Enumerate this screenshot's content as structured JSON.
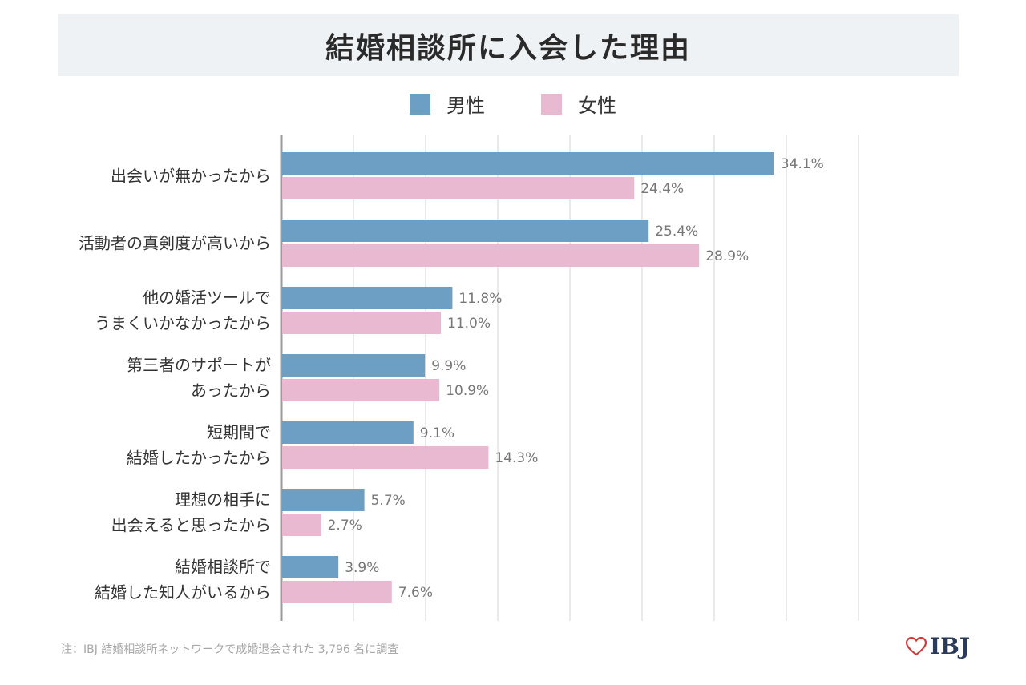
{
  "title": "結婚相談所に入会した理由",
  "legend": {
    "male": {
      "label": "男性",
      "color": "#6c9fc3"
    },
    "female": {
      "label": "女性",
      "color": "#e9b9d1"
    }
  },
  "chart_data": {
    "type": "bar",
    "orientation": "horizontal",
    "title": "結婚相談所に入会した理由",
    "categories": [
      [
        "出会いが無かったから"
      ],
      [
        "活動者の真剣度が高いから"
      ],
      [
        "他の婚活ツールで",
        "うまくいかなかったから"
      ],
      [
        "第三者のサポートが",
        "あったから"
      ],
      [
        "短期間で",
        "結婚したかったから"
      ],
      [
        "理想の相手に",
        "出会えると思ったから"
      ],
      [
        "結婚相談所で",
        "結婚した知人がいるから"
      ]
    ],
    "series": [
      {
        "name": "男性",
        "color": "#6c9fc3",
        "values": [
          34.1,
          25.4,
          11.8,
          9.9,
          9.1,
          5.7,
          3.9
        ]
      },
      {
        "name": "女性",
        "color": "#e9b9d1",
        "values": [
          24.4,
          28.9,
          11.0,
          10.9,
          14.3,
          2.7,
          7.6
        ]
      }
    ],
    "xlim": [
      0,
      40
    ],
    "value_suffix": "%",
    "grid": true,
    "legend_position": "top-center"
  },
  "footnote": "注：IBJ 結婚相談所ネットワークで成婚退会された 3,796 名に調査",
  "logo": {
    "text": "IBJ",
    "heart_color": "#d13a3a"
  }
}
